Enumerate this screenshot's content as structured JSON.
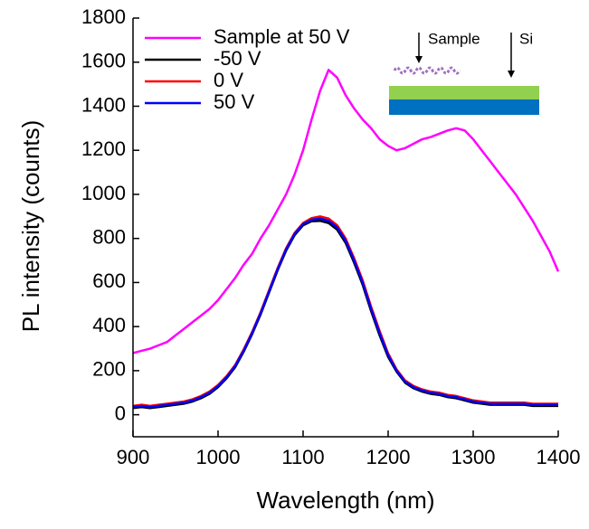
{
  "chart_data": {
    "type": "line",
    "xlabel": "Wavelength (nm)",
    "ylabel": "PL intensity (counts)",
    "xlim": [
      900,
      1400
    ],
    "xticks": [
      900,
      1000,
      1100,
      1200,
      1300,
      1400
    ],
    "ylim": [
      -100,
      1800
    ],
    "yticks": [
      0,
      200,
      400,
      600,
      800,
      1000,
      1200,
      1400,
      1600,
      1800
    ],
    "legend": "upper left",
    "annotations": [
      "Sample",
      "Si"
    ],
    "x": [
      900,
      910,
      920,
      930,
      940,
      950,
      960,
      970,
      980,
      990,
      1000,
      1010,
      1020,
      1030,
      1040,
      1050,
      1060,
      1070,
      1080,
      1090,
      1100,
      1110,
      1120,
      1130,
      1140,
      1150,
      1160,
      1170,
      1180,
      1190,
      1200,
      1210,
      1220,
      1230,
      1240,
      1250,
      1260,
      1270,
      1280,
      1290,
      1300,
      1310,
      1320,
      1330,
      1340,
      1350,
      1360,
      1370,
      1380,
      1390,
      1400
    ],
    "series": [
      {
        "name": "Sample at 50 V",
        "color": "#ff00ff",
        "values": [
          280,
          290,
          300,
          315,
          330,
          360,
          390,
          420,
          450,
          480,
          520,
          570,
          620,
          680,
          730,
          800,
          860,
          930,
          1000,
          1090,
          1200,
          1340,
          1470,
          1565,
          1530,
          1450,
          1390,
          1340,
          1300,
          1250,
          1220,
          1200,
          1210,
          1230,
          1250,
          1260,
          1275,
          1290,
          1300,
          1290,
          1250,
          1200,
          1150,
          1100,
          1050,
          1000,
          940,
          880,
          810,
          740,
          650
        ]
      },
      {
        "name": "-50 V",
        "color": "#000000",
        "values": [
          30,
          35,
          30,
          35,
          40,
          45,
          50,
          60,
          75,
          95,
          125,
          165,
          215,
          285,
          365,
          455,
          555,
          655,
          745,
          815,
          860,
          878,
          880,
          870,
          840,
          780,
          690,
          590,
          470,
          360,
          262,
          195,
          145,
          120,
          105,
          95,
          90,
          80,
          75,
          65,
          55,
          50,
          45,
          45,
          45,
          45,
          45,
          40,
          40,
          40,
          40
        ]
      },
      {
        "name": "0 V",
        "color": "#ff0000",
        "values": [
          40,
          45,
          40,
          45,
          50,
          55,
          60,
          70,
          85,
          105,
          135,
          175,
          225,
          295,
          375,
          465,
          565,
          665,
          755,
          825,
          870,
          892,
          900,
          890,
          860,
          800,
          710,
          610,
          490,
          380,
          278,
          205,
          155,
          130,
          115,
          105,
          100,
          90,
          85,
          75,
          65,
          60,
          55,
          55,
          55,
          55,
          55,
          50,
          50,
          50,
          50
        ]
      },
      {
        "name": "50 V",
        "color": "#0000ff",
        "values": [
          35,
          40,
          35,
          40,
          45,
          50,
          55,
          65,
          80,
          100,
          130,
          170,
          220,
          290,
          370,
          460,
          560,
          660,
          750,
          820,
          865,
          885,
          890,
          880,
          850,
          790,
          700,
          600,
          480,
          370,
          270,
          200,
          150,
          125,
          110,
          100,
          95,
          85,
          80,
          70,
          60,
          55,
          50,
          50,
          50,
          50,
          50,
          45,
          45,
          45,
          45
        ]
      }
    ]
  }
}
